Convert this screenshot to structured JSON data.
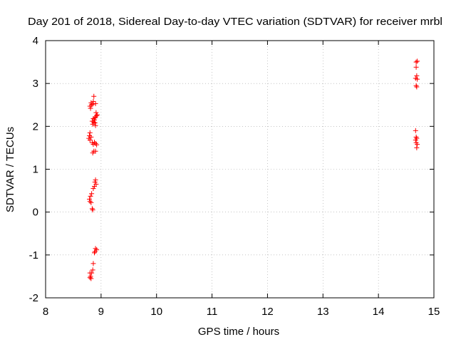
{
  "chart_data": {
    "type": "scatter",
    "title": "Day 201 of 2018, Sidereal Day-to-day VTEC variation (SDTVAR) for receiver mrbl",
    "xlabel": "GPS time / hours",
    "ylabel": "SDTVAR / TECUs",
    "xlim": [
      8,
      15
    ],
    "ylim": [
      -2,
      4
    ],
    "xticks": [
      "8",
      "9",
      "10",
      "11",
      "12",
      "13",
      "14",
      "15"
    ],
    "yticks": [
      "-2",
      "-1",
      "0",
      "1",
      "2",
      "3",
      "4"
    ],
    "grid": true,
    "marker": "+",
    "color": "#ff0000",
    "series": [
      {
        "name": "SDTVAR",
        "points": [
          [
            8.82,
            2.55
          ],
          [
            8.83,
            2.5
          ],
          [
            8.8,
            2.47
          ],
          [
            8.81,
            2.42
          ],
          [
            8.86,
            2.58
          ],
          [
            8.85,
            2.52
          ],
          [
            8.87,
            2.7
          ],
          [
            8.9,
            2.53
          ],
          [
            8.91,
            2.32
          ],
          [
            8.92,
            2.25
          ],
          [
            8.89,
            2.2
          ],
          [
            8.88,
            2.15
          ],
          [
            8.86,
            2.18
          ],
          [
            8.87,
            2.1
          ],
          [
            8.85,
            2.05
          ],
          [
            8.89,
            2.08
          ],
          [
            8.9,
            2.02
          ],
          [
            8.84,
            2.12
          ],
          [
            8.93,
            2.27
          ],
          [
            8.9,
            2.22
          ],
          [
            8.8,
            1.85
          ],
          [
            8.79,
            1.78
          ],
          [
            8.78,
            1.72
          ],
          [
            8.8,
            1.68
          ],
          [
            8.82,
            1.75
          ],
          [
            8.84,
            1.62
          ],
          [
            8.86,
            1.58
          ],
          [
            8.88,
            1.63
          ],
          [
            8.9,
            1.6
          ],
          [
            8.92,
            1.57
          ],
          [
            8.87,
            1.42
          ],
          [
            8.9,
            1.42
          ],
          [
            8.85,
            1.38
          ],
          [
            8.9,
            0.75
          ],
          [
            8.89,
            0.7
          ],
          [
            8.91,
            0.65
          ],
          [
            8.88,
            0.6
          ],
          [
            8.86,
            0.55
          ],
          [
            8.83,
            0.43
          ],
          [
            8.81,
            0.37
          ],
          [
            8.79,
            0.3
          ],
          [
            8.8,
            0.25
          ],
          [
            8.82,
            0.22
          ],
          [
            8.84,
            0.08
          ],
          [
            8.85,
            0.05
          ],
          [
            8.9,
            -0.85
          ],
          [
            8.92,
            -0.88
          ],
          [
            8.89,
            -0.92
          ],
          [
            8.88,
            -0.95
          ],
          [
            8.86,
            -1.2
          ],
          [
            8.85,
            -1.35
          ],
          [
            8.83,
            -1.42
          ],
          [
            8.8,
            -1.42
          ],
          [
            8.81,
            -1.5
          ],
          [
            8.8,
            -1.53
          ],
          [
            8.82,
            -1.55
          ],
          [
            14.68,
            3.5
          ],
          [
            14.7,
            3.52
          ],
          [
            14.68,
            3.38
          ],
          [
            14.69,
            3.18
          ],
          [
            14.67,
            3.12
          ],
          [
            14.7,
            3.1
          ],
          [
            14.68,
            2.95
          ],
          [
            14.69,
            2.92
          ],
          [
            14.67,
            1.9
          ],
          [
            14.68,
            1.75
          ],
          [
            14.69,
            1.72
          ],
          [
            14.67,
            1.68
          ],
          [
            14.68,
            1.62
          ],
          [
            14.7,
            1.58
          ],
          [
            14.69,
            1.5
          ]
        ]
      }
    ]
  }
}
